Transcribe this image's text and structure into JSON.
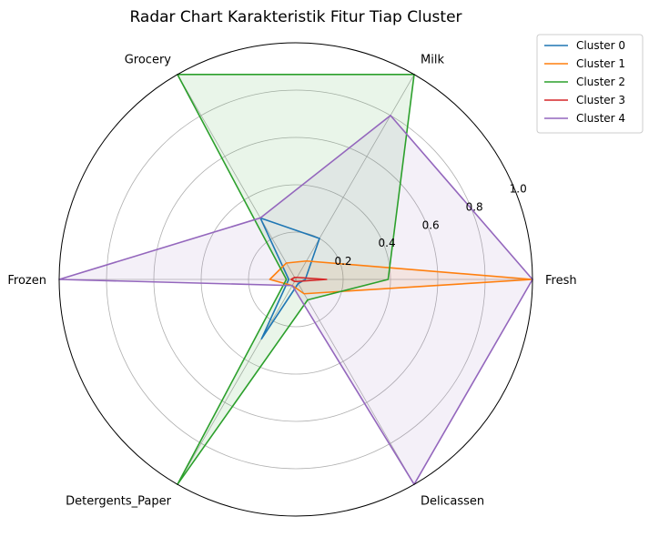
{
  "chart_data": {
    "type": "radar",
    "title": "Radar Chart Karakteristik Fitur Tiap Cluster",
    "categories": [
      "Fresh",
      "Milk",
      "Grocery",
      "Frozen",
      "Detergents_Paper",
      "Delicassen"
    ],
    "rlim": [
      0,
      1.0
    ],
    "rticks": [
      "0.2",
      "0.4",
      "0.6",
      "0.8",
      "1.0"
    ],
    "grid": true,
    "legend_position": "top-right",
    "series": [
      {
        "name": "Cluster 0",
        "color": "#1f77b4",
        "values": [
          0.04,
          0.2,
          0.3,
          0.03,
          0.29,
          0.02
        ],
        "filled": false
      },
      {
        "name": "Cluster 1",
        "color": "#ff7f0e",
        "values": [
          1.0,
          0.09,
          0.08,
          0.11,
          0.03,
          0.07
        ],
        "filled": true
      },
      {
        "name": "Cluster 2",
        "color": "#2ca02c",
        "values": [
          0.39,
          1.0,
          1.0,
          0.04,
          1.0,
          0.1
        ],
        "filled": true
      },
      {
        "name": "Cluster 3",
        "color": "#d62728",
        "values": [
          0.13,
          0.01,
          0.01,
          0.02,
          0.01,
          0.01
        ],
        "filled": false
      },
      {
        "name": "Cluster 4",
        "color": "#9467bd",
        "values": [
          1.0,
          0.8,
          0.3,
          1.0,
          0.03,
          1.0
        ],
        "filled": true
      }
    ]
  }
}
